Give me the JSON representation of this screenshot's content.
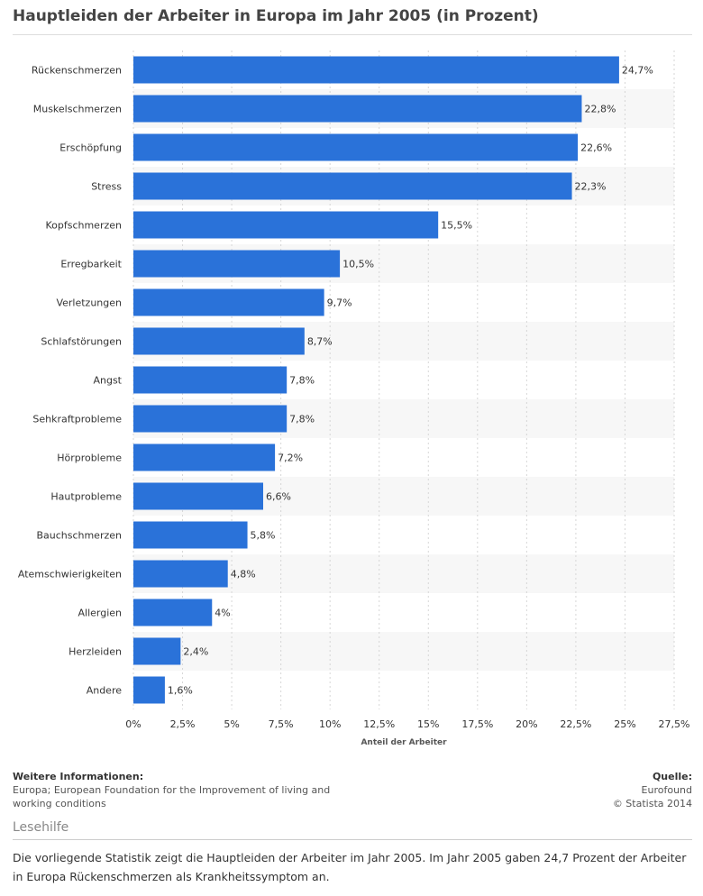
{
  "title": "Hauptleiden der Arbeiter in Europa im Jahr 2005 (in Prozent)",
  "chart_data": {
    "type": "bar",
    "orientation": "horizontal",
    "title": "Hauptleiden der Arbeiter in Europa im Jahr 2005 (in Prozent)",
    "xlabel": "Anteil der Arbeiter",
    "ylabel": "",
    "xlim": [
      0,
      27.5
    ],
    "grid": true,
    "categories": [
      "Rückenschmerzen",
      "Muskelschmerzen",
      "Erschöpfung",
      "Stress",
      "Kopfschmerzen",
      "Erregbarkeit",
      "Verletzungen",
      "Schlafstörungen",
      "Angst",
      "Sehkraftprobleme",
      "Hörprobleme",
      "Hautprobleme",
      "Bauchschmerzen",
      "Atemschwierigkeiten",
      "Allergien",
      "Herzleiden",
      "Andere"
    ],
    "values": [
      24.7,
      22.8,
      22.6,
      22.3,
      15.5,
      10.5,
      9.7,
      8.7,
      7.8,
      7.8,
      7.2,
      6.6,
      5.8,
      4.8,
      4,
      2.4,
      1.6
    ],
    "value_labels": [
      "24,7%",
      "22,8%",
      "22,6%",
      "22,3%",
      "15,5%",
      "10,5%",
      "9,7%",
      "8,7%",
      "7,8%",
      "7,8%",
      "7,2%",
      "6,6%",
      "5,8%",
      "4,8%",
      "4%",
      "2,4%",
      "1,6%"
    ],
    "ticks": [
      0,
      2.5,
      5,
      7.5,
      10,
      12.5,
      15,
      17.5,
      20,
      22.5,
      25,
      27.5
    ],
    "tick_labels": [
      "0%",
      "2,5%",
      "5%",
      "7,5%",
      "10%",
      "12,5%",
      "15%",
      "17,5%",
      "20%",
      "22,5%",
      "25%",
      "27,5%"
    ],
    "bar_color": "#2a72d9"
  },
  "info": {
    "heading": "Weitere Informationen:",
    "text": "Europa; European Foundation for the Improvement of living and working conditions"
  },
  "source": {
    "heading": "Quelle:",
    "name": "Eurofound",
    "copyright": "© Statista 2014"
  },
  "help": {
    "title": "Lesehilfe",
    "text": "Die vorliegende Statistik zeigt die Hauptleiden der Arbeiter im Jahr 2005. Im Jahr 2005 gaben 24,7 Prozent der Arbeiter in Europa Rückenschmerzen als Krankheitssymptom an."
  }
}
